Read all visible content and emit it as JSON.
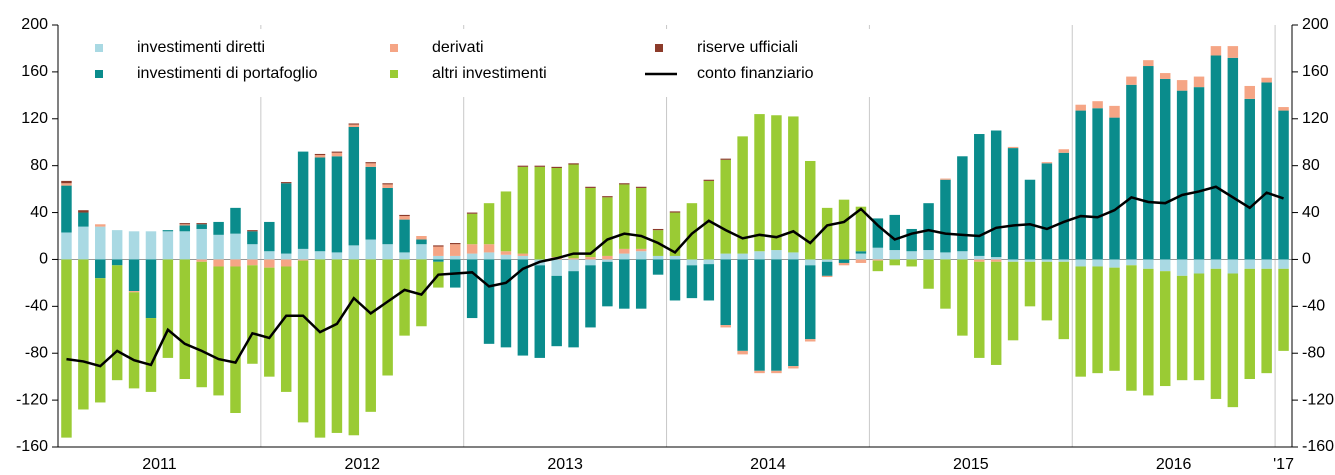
{
  "chart_data": {
    "type": "bar",
    "categories": [
      null,
      null,
      null,
      null,
      null,
      null,
      "2011",
      null,
      null,
      null,
      null,
      null,
      null,
      null,
      null,
      null,
      null,
      null,
      "2012",
      null,
      null,
      null,
      null,
      null,
      null,
      null,
      null,
      null,
      null,
      null,
      "2013",
      null,
      null,
      null,
      null,
      null,
      null,
      null,
      null,
      null,
      null,
      null,
      "2014",
      null,
      null,
      null,
      null,
      null,
      null,
      null,
      null,
      null,
      null,
      null,
      "2015",
      null,
      null,
      null,
      null,
      null,
      null,
      null,
      null,
      null,
      null,
      null,
      "2016",
      null,
      null,
      null,
      null,
      null,
      "'17"
    ],
    "series": [
      {
        "name": "investimenti diretti",
        "color": "#a9d9e3",
        "values": [
          23,
          28,
          28,
          25,
          24,
          24,
          24,
          24,
          26,
          21,
          22,
          13,
          7,
          5,
          9,
          7,
          6,
          12,
          17,
          13,
          6,
          13,
          3,
          3,
          5,
          6,
          4,
          3,
          -5,
          -14,
          -10,
          -5,
          -2,
          5,
          7,
          3,
          3,
          -5,
          -4,
          5,
          5,
          7,
          8,
          6,
          -5,
          -2,
          0,
          5,
          10,
          8,
          7,
          8,
          6,
          7,
          3,
          2,
          -2,
          -2,
          -2,
          -2,
          -6,
          -6,
          -7,
          -5,
          -8,
          -10,
          -14,
          -12,
          -8,
          -12,
          -8,
          -8,
          -8
        ]
      },
      {
        "name": "investimenti di portafoglio",
        "color": "#0a8c8c",
        "values": [
          40,
          12,
          -16,
          -5,
          -27,
          -50,
          1,
          5,
          4,
          11,
          22,
          11,
          25,
          60,
          83,
          80,
          82,
          101,
          62,
          48,
          28,
          4,
          -2,
          -24,
          -50,
          -72,
          -75,
          -82,
          -79,
          -60,
          -65,
          -53,
          -38,
          -42,
          -42,
          -13,
          -35,
          -28,
          -31,
          -56,
          -78,
          -95,
          -95,
          -91,
          -63,
          -12,
          -3,
          2,
          25,
          30,
          19,
          40,
          62,
          81,
          104,
          108,
          95,
          68,
          82,
          91,
          127,
          129,
          121,
          149,
          165,
          154,
          144,
          147,
          174,
          172,
          137,
          151,
          127
        ]
      },
      {
        "name": "derivati",
        "color": "#f5a585",
        "values": [
          2,
          0,
          2,
          0,
          -1,
          0,
          0,
          1,
          -2,
          -6,
          -6,
          -5,
          -7,
          -6,
          -1,
          2,
          3,
          2,
          3,
          3,
          3,
          3,
          8,
          10,
          8,
          7,
          3,
          2,
          0,
          2,
          1,
          2,
          3,
          4,
          2,
          0,
          0,
          0,
          0,
          -2,
          -3,
          -2,
          -2,
          -2,
          -2,
          -1,
          -2,
          -3,
          -1,
          0,
          0,
          0,
          1,
          0,
          -2,
          -2,
          1,
          0,
          1,
          3,
          5,
          6,
          10,
          7,
          5,
          5,
          9,
          9,
          8,
          10,
          11,
          4,
          3
        ]
      },
      {
        "name": "altri investimenti",
        "color": "#9acb34",
        "values": [
          -152,
          -128,
          -106,
          -98,
          -82,
          -63,
          -84,
          -102,
          -107,
          -110,
          -125,
          -84,
          -93,
          -107,
          -138,
          -152,
          -148,
          -150,
          -130,
          -99,
          -65,
          -57,
          -22,
          0,
          26,
          35,
          51,
          74,
          79,
          76,
          80,
          59,
          50,
          55,
          52,
          22,
          37,
          48,
          67,
          80,
          100,
          117,
          115,
          116,
          84,
          44,
          51,
          38,
          -9,
          -5,
          -6,
          -25,
          -42,
          -65,
          -82,
          -88,
          -67,
          -38,
          -50,
          -66,
          -94,
          -91,
          -88,
          -107,
          -108,
          -98,
          -89,
          -91,
          -111,
          -114,
          -94,
          -89,
          -70
        ]
      },
      {
        "name": "riserve ufficiali",
        "color": "#8c3b2a",
        "values": [
          2,
          2,
          0,
          0,
          0,
          0,
          0,
          1,
          1,
          0,
          0,
          1,
          0,
          1,
          0,
          1,
          1,
          1,
          1,
          1,
          1,
          0,
          1,
          1,
          1,
          0,
          0,
          1,
          1,
          1,
          1,
          1,
          1,
          1,
          1,
          1,
          1,
          0,
          1,
          1,
          0,
          0,
          0,
          0,
          0,
          0,
          0,
          0,
          0,
          0,
          0,
          0,
          0,
          0,
          0,
          0,
          0,
          0,
          0,
          0,
          0,
          0,
          0,
          0,
          0,
          0,
          0,
          0,
          0,
          0,
          0,
          0,
          0
        ]
      },
      {
        "name": "conto finanziario",
        "color": "#000000",
        "type": "line",
        "values": [
          -85,
          -87,
          -91,
          -78,
          -86,
          -90,
          -60,
          -72,
          -78,
          -85,
          -88,
          -63,
          -67,
          -48,
          -48,
          -62,
          -55,
          -33,
          -46,
          -36,
          -26,
          -30,
          -13,
          -12,
          -11,
          -23,
          -20,
          -8,
          -2,
          1,
          5,
          5,
          17,
          22,
          20,
          14,
          6,
          22,
          33,
          25,
          18,
          21,
          19,
          24,
          14,
          29,
          32,
          43,
          29,
          17,
          22,
          25,
          22,
          21,
          20,
          27,
          29,
          30,
          26,
          32,
          37,
          36,
          42,
          53,
          49,
          48,
          55,
          58,
          62,
          53,
          44,
          57,
          52
        ]
      }
    ],
    "ylim": [
      -160,
      200
    ],
    "yticks": [
      -160,
      -120,
      -80,
      -40,
      0,
      40,
      80,
      120,
      160,
      200
    ]
  }
}
